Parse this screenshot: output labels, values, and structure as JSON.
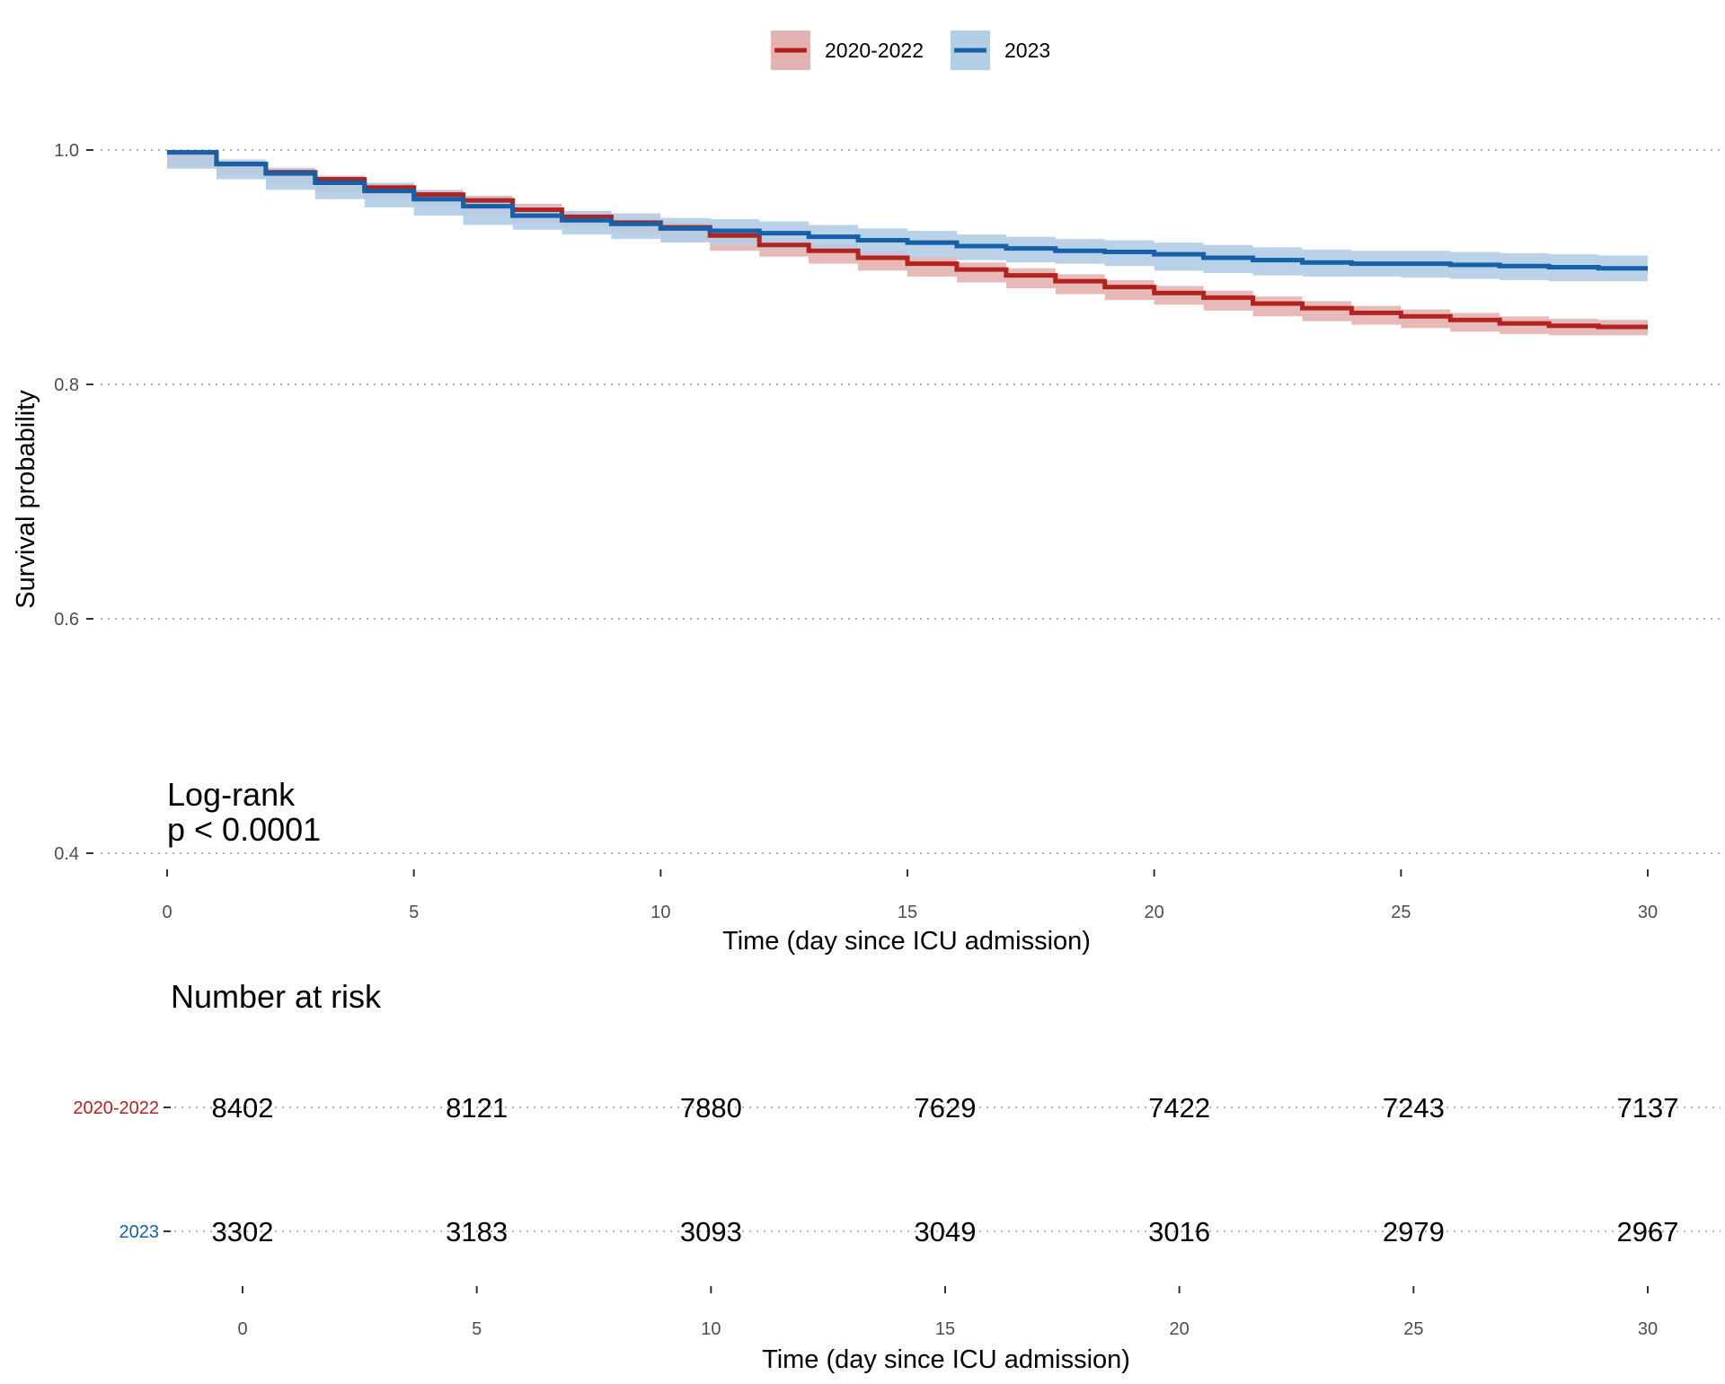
{
  "chart_data": [
    {
      "type": "line",
      "subtype": "kaplan-meier",
      "title": "",
      "xlabel": "Time (day since ICU admission)",
      "ylabel": "Survival probability",
      "xlim": [
        0,
        30
      ],
      "ylim": [
        0.4,
        1.0
      ],
      "x_ticks": [
        "0",
        "5",
        "10",
        "15",
        "20",
        "25",
        "30"
      ],
      "y_ticks": [
        "0.4",
        "0.6",
        "0.8",
        "1.0"
      ],
      "grid": "horizontal dotted",
      "legend_position": "top",
      "annotation": [
        "Log-rank",
        "p < 0.0001"
      ],
      "series": [
        {
          "name": "2020-2022",
          "color": "#B2221E",
          "band_color": "#E4B3B1",
          "x": [
            0,
            1,
            2,
            3,
            4,
            5,
            6,
            7,
            8,
            9,
            10,
            11,
            12,
            13,
            14,
            15,
            16,
            17,
            18,
            19,
            20,
            21,
            22,
            23,
            24,
            25,
            26,
            27,
            28,
            29,
            30
          ],
          "y": [
            0.998,
            0.988,
            0.981,
            0.975,
            0.968,
            0.962,
            0.957,
            0.949,
            0.943,
            0.938,
            0.934,
            0.927,
            0.919,
            0.914,
            0.908,
            0.903,
            0.898,
            0.893,
            0.888,
            0.883,
            0.878,
            0.874,
            0.869,
            0.865,
            0.861,
            0.858,
            0.855,
            0.852,
            0.85,
            0.849,
            0.849
          ],
          "lower": [
            0.997,
            0.986,
            0.979,
            0.971,
            0.964,
            0.958,
            0.952,
            0.944,
            0.938,
            0.933,
            0.929,
            0.922,
            0.914,
            0.909,
            0.903,
            0.897,
            0.892,
            0.887,
            0.882,
            0.877,
            0.872,
            0.868,
            0.863,
            0.858,
            0.854,
            0.851,
            0.848,
            0.845,
            0.843,
            0.842,
            0.842
          ],
          "upper": [
            0.999,
            0.99,
            0.983,
            0.978,
            0.972,
            0.966,
            0.961,
            0.954,
            0.948,
            0.943,
            0.939,
            0.932,
            0.925,
            0.92,
            0.914,
            0.909,
            0.904,
            0.899,
            0.894,
            0.889,
            0.884,
            0.88,
            0.875,
            0.871,
            0.867,
            0.864,
            0.861,
            0.858,
            0.856,
            0.855,
            0.855
          ]
        },
        {
          "name": "2023",
          "color": "#1560A8",
          "band_color": "#B3CDE4",
          "x": [
            0,
            1,
            2,
            3,
            4,
            5,
            6,
            7,
            8,
            9,
            10,
            11,
            12,
            13,
            14,
            15,
            16,
            17,
            18,
            19,
            20,
            21,
            22,
            23,
            24,
            25,
            26,
            27,
            28,
            29,
            30
          ],
          "y": [
            0.998,
            0.988,
            0.98,
            0.972,
            0.965,
            0.958,
            0.952,
            0.944,
            0.94,
            0.937,
            0.933,
            0.931,
            0.929,
            0.926,
            0.923,
            0.921,
            0.918,
            0.916,
            0.914,
            0.913,
            0.911,
            0.908,
            0.906,
            0.904,
            0.903,
            0.903,
            0.902,
            0.901,
            0.9,
            0.899,
            0.899
          ],
          "lower": [
            0.996,
            0.984,
            0.975,
            0.966,
            0.958,
            0.951,
            0.944,
            0.936,
            0.932,
            0.928,
            0.924,
            0.921,
            0.919,
            0.916,
            0.913,
            0.911,
            0.908,
            0.906,
            0.904,
            0.903,
            0.901,
            0.897,
            0.895,
            0.893,
            0.892,
            0.892,
            0.891,
            0.89,
            0.889,
            0.888,
            0.888
          ],
          "upper": [
            1.0,
            0.992,
            0.985,
            0.978,
            0.972,
            0.965,
            0.96,
            0.952,
            0.948,
            0.946,
            0.942,
            0.941,
            0.939,
            0.936,
            0.933,
            0.931,
            0.928,
            0.926,
            0.924,
            0.923,
            0.921,
            0.919,
            0.917,
            0.915,
            0.914,
            0.914,
            0.913,
            0.912,
            0.911,
            0.91,
            0.91
          ]
        }
      ]
    },
    {
      "type": "table",
      "title": "Number at risk",
      "xlabel": "Time (day since ICU admission)",
      "columns": [
        "0",
        "5",
        "10",
        "15",
        "20",
        "25",
        "30"
      ],
      "rows": [
        {
          "name": "2020-2022",
          "color": "#B2221E",
          "values": [
            "8402",
            "8121",
            "7880",
            "7629",
            "7422",
            "7243",
            "7137"
          ]
        },
        {
          "name": "2023",
          "color": "#1560A8",
          "values": [
            "3302",
            "3183",
            "3093",
            "3049",
            "3016",
            "2979",
            "2967"
          ]
        }
      ]
    }
  ]
}
